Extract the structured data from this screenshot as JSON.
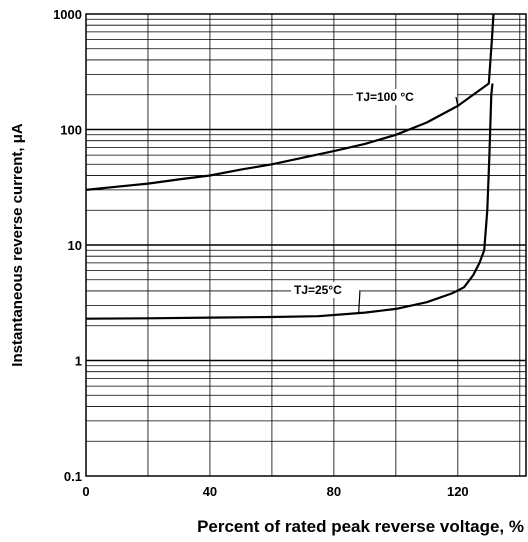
{
  "chart_data": {
    "type": "line",
    "title": "",
    "xlabel": "Percent of rated peak reverse voltage, %",
    "ylabel": "Instantaneous reverse current, μA",
    "xlim": [
      0,
      142
    ],
    "ylim": [
      0.1,
      1000
    ],
    "yscale": "log",
    "grid": true,
    "xticks": [
      {
        "value": 0,
        "label": "0"
      },
      {
        "value": 40,
        "label": "40"
      },
      {
        "value": 80,
        "label": "80"
      },
      {
        "value": 120,
        "label": "120"
      }
    ],
    "yticks": [
      {
        "value": 0.1,
        "label": "0.1"
      },
      {
        "value": 1,
        "label": "1"
      },
      {
        "value": 10,
        "label": "10"
      },
      {
        "value": 100,
        "label": "100"
      },
      {
        "value": 1000,
        "label": "1000"
      }
    ],
    "series": [
      {
        "name": "TJ=100 °C",
        "x": [
          0,
          10,
          20,
          30,
          40,
          50,
          60,
          70,
          80,
          90,
          100,
          110,
          120,
          130,
          131,
          131.5
        ],
        "y": [
          30,
          32,
          34,
          37,
          40,
          45,
          50,
          57,
          65,
          75,
          90,
          115,
          160,
          250,
          600,
          1000
        ]
      },
      {
        "name": "TJ=25°C",
        "x": [
          0,
          20,
          40,
          60,
          75,
          90,
          100,
          110,
          118,
          122,
          125,
          127,
          128.5,
          129.5,
          130.2,
          130.8,
          131.2
        ],
        "y": [
          2.3,
          2.32,
          2.35,
          2.38,
          2.42,
          2.6,
          2.8,
          3.2,
          3.8,
          4.3,
          5.5,
          7,
          9,
          20,
          60,
          200,
          250
        ]
      }
    ]
  }
}
